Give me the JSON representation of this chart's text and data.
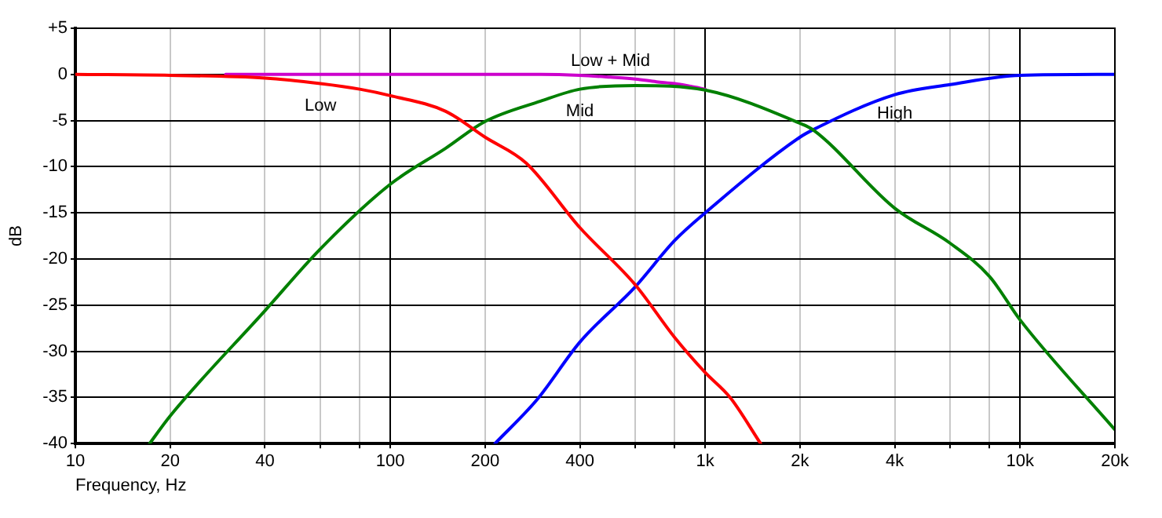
{
  "chart_data": {
    "type": "line",
    "xlabel": "Frequency, Hz",
    "ylabel": "dB",
    "log": "x",
    "grid": true,
    "legend": false,
    "marker": "none",
    "line_style": "solid",
    "xlim": [
      10,
      20000
    ],
    "ylim": [
      -40,
      5
    ],
    "xticks": [
      10,
      20,
      40,
      {
        "value": 60,
        "label": null
      },
      {
        "value": 80,
        "label": null
      },
      100,
      200,
      400,
      {
        "value": 600,
        "label": null
      },
      {
        "value": 800,
        "label": null
      },
      {
        "value": 1000,
        "label": "1k"
      },
      {
        "value": 2000,
        "label": "2k"
      },
      {
        "value": 4000,
        "label": "4k"
      },
      {
        "value": 6000,
        "label": null
      },
      {
        "value": 8000,
        "label": null
      },
      {
        "value": 10000,
        "label": "10k"
      },
      {
        "value": 20000,
        "label": "20k"
      }
    ],
    "yticks": [
      {
        "value": 5,
        "label": "+5"
      },
      0,
      -5,
      -10,
      -15,
      -20,
      -25,
      -30,
      -35,
      -40
    ],
    "series": [
      {
        "name": "Low",
        "color": "#ff0000",
        "x": [
          10,
          20,
          40,
          60,
          80,
          100,
          150,
          200,
          270,
          400,
          600,
          800,
          1000,
          1200,
          1500
        ],
        "values": [
          0,
          -0.1,
          -0.4,
          -1,
          -1.6,
          -2.3,
          -4.0,
          -6.8,
          -9.6,
          -16.6,
          -22.8,
          -28.5,
          -32.3,
          -35,
          -40
        ]
      },
      {
        "name": "Mid",
        "color": "#008000",
        "x": [
          17.2,
          20,
          40,
          60,
          100,
          150,
          200,
          300,
          400,
          600,
          1000,
          2000,
          2200,
          4000,
          6000,
          8000,
          10000,
          20000
        ],
        "values": [
          -40,
          -37,
          -25.6,
          -18.9,
          -11.9,
          -8,
          -5.1,
          -2.9,
          -1.6,
          -1.2,
          -1.7,
          -5.3,
          -6,
          -14.5,
          -18.3,
          -21.9,
          -26.6,
          -38.5
        ]
      },
      {
        "name": "High",
        "color": "#0000ff",
        "x": [
          215,
          293,
          400,
          600,
          800,
          1000,
          2000,
          2200,
          4000,
          6000,
          10000,
          20000
        ],
        "values": [
          -40,
          -35.2,
          -29,
          -23,
          -18,
          -15,
          -6.8,
          -6,
          -2.2,
          -1.1,
          -0.1,
          0
        ]
      },
      {
        "name": "Low + Mid",
        "color": "#cc00cc",
        "x": [
          30,
          100,
          200,
          300,
          400,
          500,
          600,
          700,
          800,
          900,
          1000
        ],
        "values": [
          0,
          0,
          0,
          0,
          -0.1,
          -0.3,
          -0.5,
          -0.8,
          -1,
          -1.3,
          -1.6
        ]
      }
    ]
  }
}
